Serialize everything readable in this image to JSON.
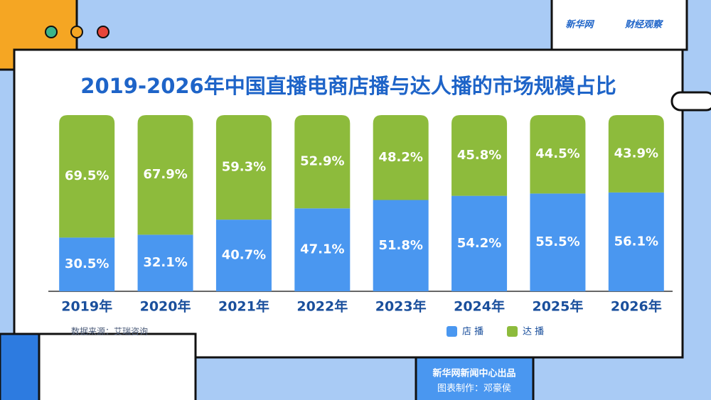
{
  "brand": [
    "新华网",
    "财经观察"
  ],
  "chart_data": {
    "type": "stacked-bar",
    "title": "2019-2026年中国直播电商店播与达人播的市场规模占比",
    "categories": [
      "2019年",
      "2020年",
      "2021年",
      "2022年",
      "2023年",
      "2024年",
      "2025年",
      "2026年"
    ],
    "series": [
      {
        "name": "店 播",
        "color": "#4a97f0",
        "values": [
          30.5,
          32.1,
          40.7,
          47.1,
          51.8,
          54.2,
          55.5,
          56.1
        ],
        "value_labels": [
          "30.5%",
          "32.1%",
          "40.7%",
          "47.1%",
          "51.8%",
          "54.2%",
          "55.5%",
          "56.1%"
        ]
      },
      {
        "name": "达 播",
        "color": "#8dbb3c",
        "values": [
          69.5,
          67.9,
          59.3,
          52.9,
          48.2,
          45.8,
          44.5,
          43.9
        ],
        "value_labels": [
          "69.5%",
          "67.9%",
          "59.3%",
          "52.9%",
          "48.2%",
          "45.8%",
          "44.5%",
          "43.9%"
        ]
      }
    ],
    "ylim": [
      0,
      100
    ],
    "source": "数据来源：艾瑞咨询"
  },
  "footer": {
    "publisher": "新华网新闻中心出品",
    "credit": "图表制作：邓豪侯"
  }
}
